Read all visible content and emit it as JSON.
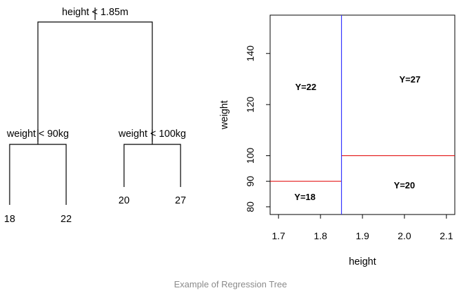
{
  "caption": "Example of Regression Tree",
  "chart_data": [
    {
      "type": "tree",
      "root": {
        "split": "height < 1.85m",
        "left": {
          "split": "weight < 90kg",
          "left": {
            "value": "18"
          },
          "right": {
            "value": "22"
          }
        },
        "right": {
          "split": "weight < 100kg",
          "left": {
            "value": "20"
          },
          "right": {
            "value": "27"
          }
        }
      }
    },
    {
      "type": "partition",
      "xlabel": "height",
      "ylabel": "weight",
      "xlim": [
        1.68,
        2.12
      ],
      "ylim": [
        77,
        155
      ],
      "xticks": [
        1.7,
        1.8,
        1.9,
        2.0,
        2.1
      ],
      "yticks": [
        80,
        90,
        100,
        120,
        140
      ],
      "vertical_splits": [
        {
          "x": 1.85,
          "color": "#3333ff"
        }
      ],
      "horizontal_splits": [
        {
          "y": 90,
          "x_from": 1.68,
          "x_to": 1.85,
          "color": "#e00000"
        },
        {
          "y": 100,
          "x_from": 1.85,
          "x_to": 2.12,
          "color": "#e00000"
        }
      ],
      "regions": [
        {
          "label": "Y=22",
          "x": 1.765,
          "y": 127
        },
        {
          "label": "Y=27",
          "x": 2.013,
          "y": 130
        },
        {
          "label": "Y=18",
          "x": 1.763,
          "y": 84
        },
        {
          "label": "Y=20",
          "x": 2.0,
          "y": 88.5
        }
      ]
    }
  ]
}
